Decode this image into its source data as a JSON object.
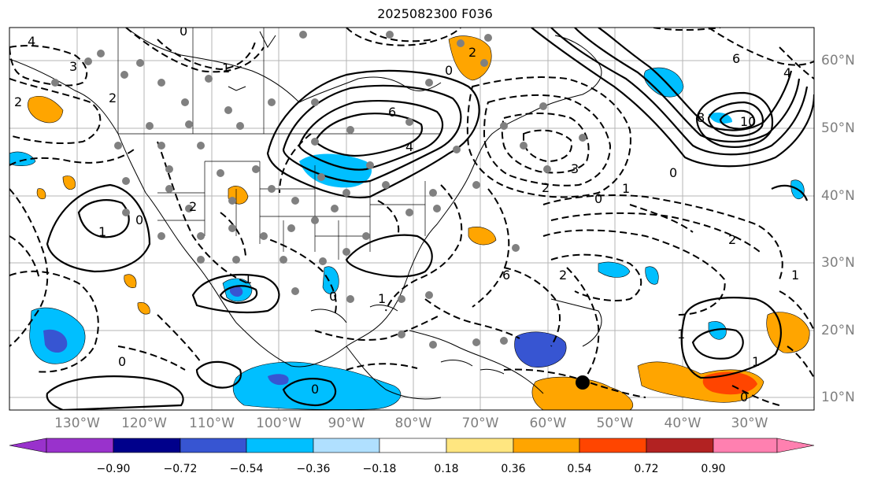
{
  "title": "2025082300 F036",
  "lon_labels": [
    "130°W",
    "120°W",
    "110°W",
    "100°W",
    "90°W",
    "80°W",
    "70°W",
    "60°W",
    "50°W",
    "40°W",
    "30°W"
  ],
  "lat_labels": [
    "60°N",
    "50°N",
    "40°N",
    "30°N",
    "20°N",
    "10°N"
  ],
  "colorbar": {
    "ticks": [
      "−0.90",
      "−0.72",
      "−0.54",
      "−0.36",
      "−0.18",
      "0.18",
      "0.36",
      "0.54",
      "0.72",
      "0.90"
    ],
    "colors": [
      "#9932cc",
      "#00008b",
      "#3755d2",
      "#00bfff",
      "#b0e0ff",
      "#ffffff",
      "#ffe680",
      "#ffa500",
      "#ff4500",
      "#b22222",
      "#ff80b0"
    ]
  },
  "contour_labels": [
    "4",
    "3",
    "2",
    "0",
    "1",
    "2",
    "0",
    "6",
    "4",
    "2",
    "3",
    "2",
    "0",
    "6",
    "8",
    "10",
    "4",
    "2",
    "0",
    "1",
    "2",
    "0",
    "1",
    "1",
    "6",
    "2",
    "0",
    "1",
    "1",
    "0",
    "0",
    "1",
    "0",
    "1"
  ],
  "storm_marker": "black-dot"
}
